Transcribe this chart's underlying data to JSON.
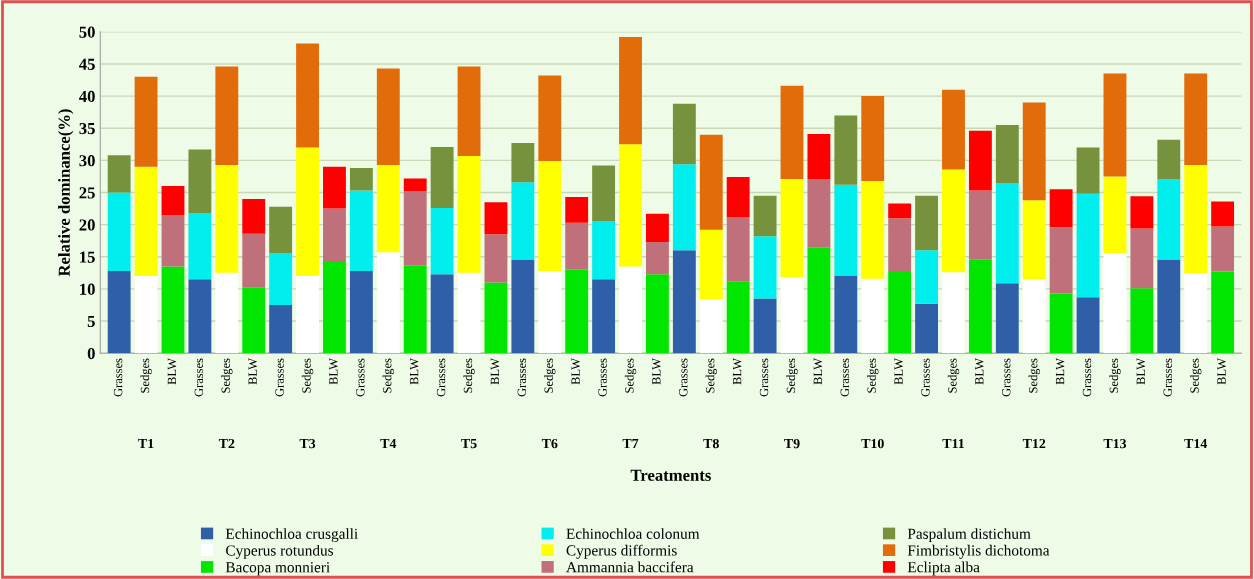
{
  "chart_data": {
    "type": "bar",
    "stacked": true,
    "xlabel": "Treatments",
    "ylabel": "Relative dominance(%)",
    "categories": [
      "Grasses",
      "Sedges",
      "BLW",
      "Grasses",
      "Sedges",
      "BLW",
      "Grasses",
      "Sedges",
      "BLW",
      "Grasses",
      "Sedges",
      "BLW",
      "Grasses",
      "Sedges",
      "BLW",
      "Grasses",
      "Sedges",
      "BLW",
      "Grasses",
      "Sedges",
      "BLW",
      "Grasses",
      "Sedges",
      "BLW",
      "Grasses",
      "Sedges",
      "BLW",
      "Grasses",
      "Sedges",
      "BLW",
      "Grasses",
      "Sedges",
      "BLW",
      "Grasses",
      "Sedges",
      "BLW",
      "Grasses",
      "Sedges",
      "BLW",
      "Grasses",
      "Sedges",
      "BLW"
    ],
    "annotations": [
      "T1",
      "T2",
      "T3",
      "T4",
      "T5",
      "T6",
      "T7",
      "T8",
      "T9",
      "T10",
      "T11",
      "T12",
      "T13",
      "T14"
    ],
    "ylim": [
      0,
      50
    ],
    "yticks": [
      0,
      5,
      10,
      15,
      20,
      25,
      30,
      35,
      40,
      45,
      50
    ],
    "grid": "y",
    "legend": "bottom",
    "series": [
      {
        "name": "Echinochloa crusgalli",
        "color": "#2e5fa8",
        "values": [
          12.8,
          null,
          null,
          11.5,
          null,
          null,
          7.5,
          null,
          null,
          12.8,
          null,
          null,
          12.3,
          null,
          null,
          14.5,
          null,
          null,
          11.5,
          null,
          null,
          16,
          null,
          null,
          8.5,
          null,
          null,
          12,
          null,
          null,
          7.7,
          null,
          null,
          10.9,
          null,
          null,
          8.7,
          null,
          null,
          14.5,
          null,
          null
        ]
      },
      {
        "name": "Echinochloa colonum",
        "color": "#00eeee",
        "values": [
          12.2,
          null,
          null,
          10.3,
          null,
          null,
          8.0,
          null,
          null,
          12.5,
          null,
          null,
          10.3,
          null,
          null,
          12.1,
          null,
          null,
          9.0,
          null,
          null,
          13.4,
          null,
          null,
          9.7,
          null,
          null,
          14.2,
          null,
          null,
          8.3,
          null,
          null,
          15.5,
          null,
          null,
          16.1,
          null,
          null,
          12.6,
          null,
          null
        ]
      },
      {
        "name": "Paspalum distichum",
        "color": "#76923c",
        "values": [
          5.8,
          null,
          null,
          9.9,
          null,
          null,
          7.3,
          null,
          null,
          3.5,
          null,
          null,
          9.5,
          null,
          null,
          6.1,
          null,
          null,
          8.7,
          null,
          null,
          9.4,
          null,
          null,
          6.3,
          null,
          null,
          10.8,
          null,
          null,
          8.5,
          null,
          null,
          9.1,
          null,
          null,
          7.2,
          null,
          null,
          6.1,
          null,
          null
        ]
      },
      {
        "name": "Cyperus rotundus",
        "color": "#ffffff",
        "values": [
          null,
          12,
          null,
          null,
          12.5,
          null,
          null,
          12,
          null,
          null,
          15.7,
          null,
          null,
          12.5,
          null,
          null,
          12.8,
          null,
          null,
          13.5,
          null,
          null,
          8.4,
          null,
          null,
          11.8,
          null,
          null,
          11.6,
          null,
          null,
          12.6,
          null,
          null,
          11.5,
          null,
          null,
          15.6,
          null,
          null,
          12.4,
          null
        ]
      },
      {
        "name": "Cyperus difformis",
        "color": "#ffff00",
        "values": [
          null,
          17,
          null,
          null,
          16.8,
          null,
          null,
          20,
          null,
          null,
          13.6,
          null,
          null,
          18.2,
          null,
          null,
          17.1,
          null,
          null,
          19,
          null,
          null,
          10.8,
          null,
          null,
          15.3,
          null,
          null,
          15.2,
          null,
          null,
          16,
          null,
          null,
          12.3,
          null,
          null,
          11.9,
          null,
          null,
          16.9,
          null
        ]
      },
      {
        "name": "Fimbristylis dichotoma",
        "color": "#e36c0a",
        "values": [
          null,
          14,
          null,
          null,
          15.3,
          null,
          null,
          16.2,
          null,
          null,
          15,
          null,
          null,
          13.9,
          null,
          null,
          13.3,
          null,
          null,
          16.7,
          null,
          null,
          14.8,
          null,
          null,
          14.5,
          null,
          null,
          13.2,
          null,
          null,
          12.4,
          null,
          null,
          15.2,
          null,
          null,
          16,
          null,
          null,
          14.2,
          null
        ]
      },
      {
        "name": "Bacopa monnieri",
        "color": "#00e600",
        "values": [
          null,
          null,
          13.5,
          null,
          null,
          10.2,
          null,
          null,
          14.2,
          null,
          null,
          13.6,
          null,
          null,
          11,
          null,
          null,
          13,
          null,
          null,
          12.3,
          null,
          null,
          11.2,
          null,
          null,
          16.4,
          null,
          null,
          12.8,
          null,
          null,
          14.6,
          null,
          null,
          9.3,
          null,
          null,
          10.1,
          null,
          null,
          12.7
        ]
      },
      {
        "name": "Ammannia baccifera",
        "color": "#c0707a",
        "values": [
          null,
          null,
          8,
          null,
          null,
          8.4,
          null,
          null,
          8.3,
          null,
          null,
          11.6,
          null,
          null,
          7.5,
          null,
          null,
          7.3,
          null,
          null,
          5,
          null,
          null,
          10,
          null,
          null,
          10.7,
          null,
          null,
          8.2,
          null,
          null,
          10.7,
          null,
          null,
          10.3,
          null,
          null,
          9.3,
          null,
          null,
          7
        ]
      },
      {
        "name": "Eclipta alba",
        "color": "#ff0000",
        "values": [
          null,
          null,
          4.5,
          null,
          null,
          5.4,
          null,
          null,
          6.5,
          null,
          null,
          2,
          null,
          null,
          5,
          null,
          null,
          4,
          null,
          null,
          4.4,
          null,
          null,
          6.2,
          null,
          null,
          7,
          null,
          null,
          2.3,
          null,
          null,
          9.3,
          null,
          null,
          5.9,
          null,
          null,
          5,
          null,
          null,
          3.9
        ]
      }
    ]
  }
}
